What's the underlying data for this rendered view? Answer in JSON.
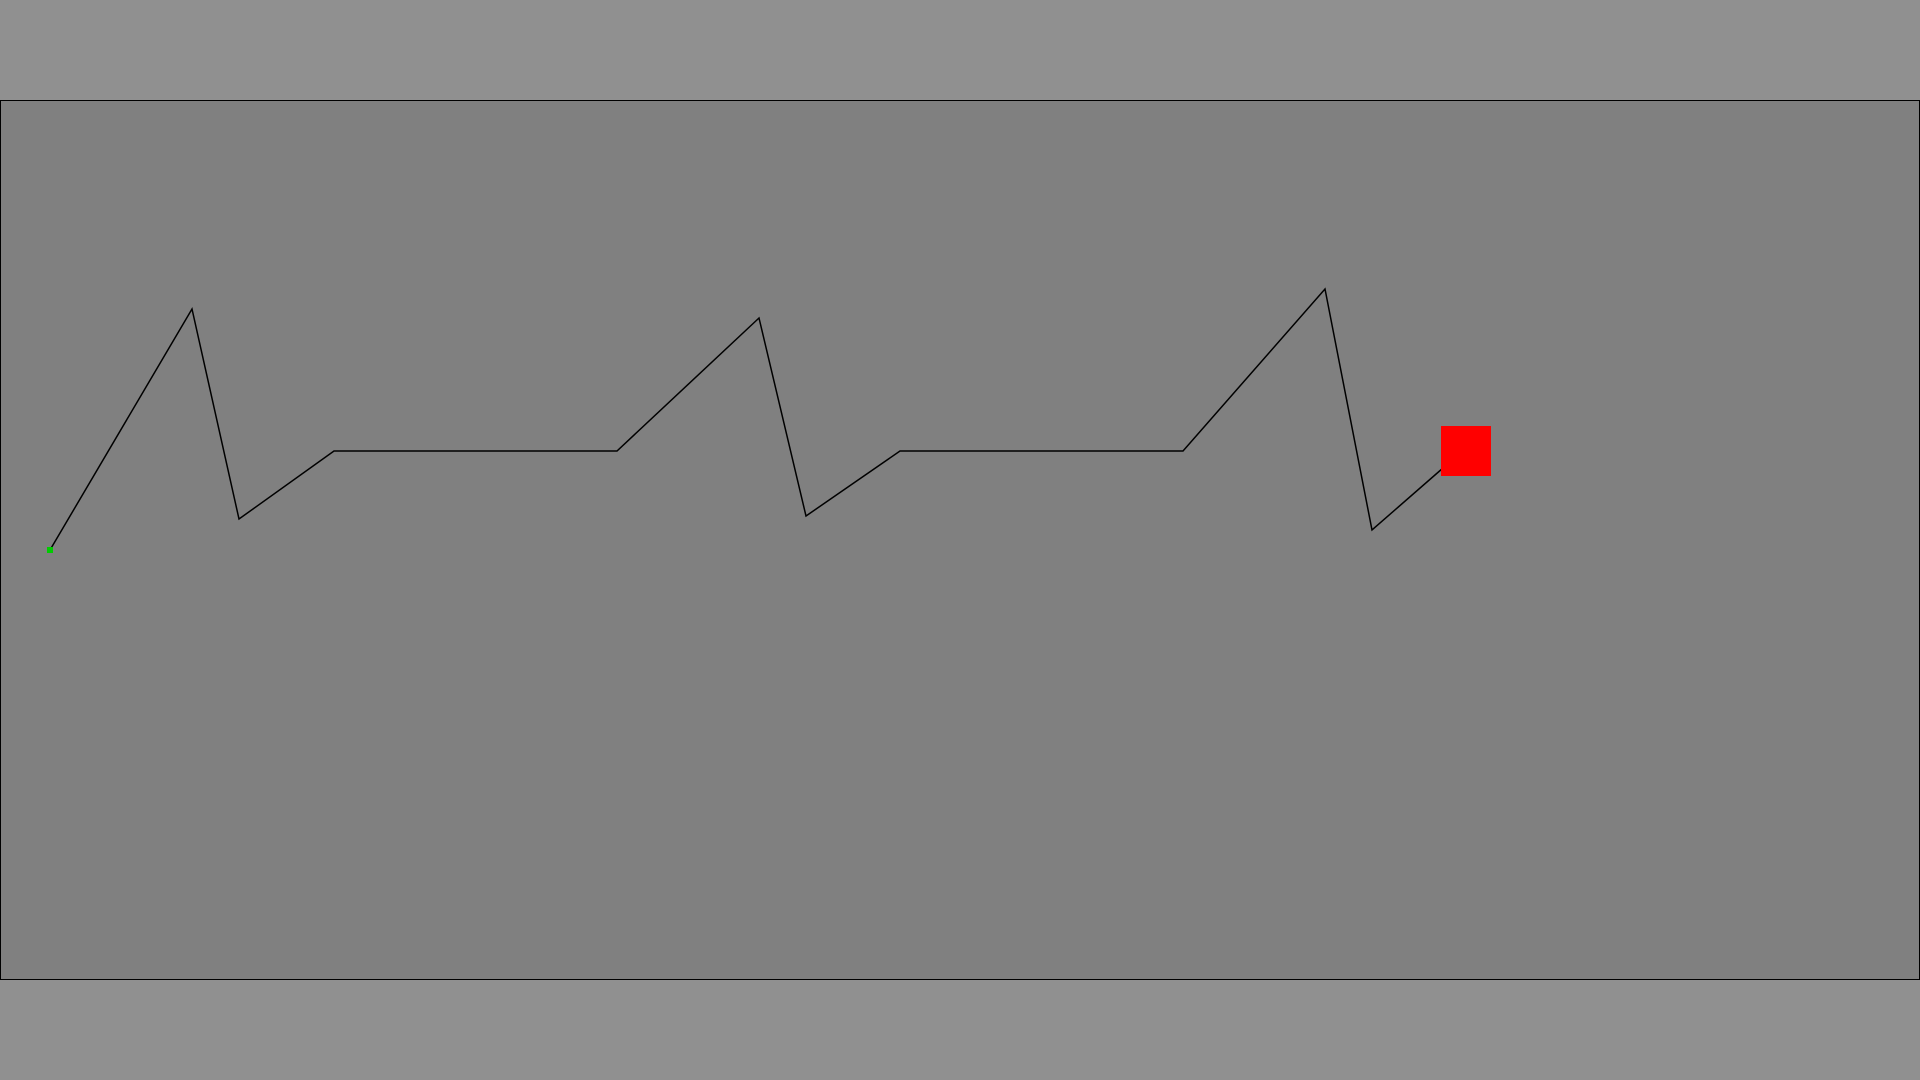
{
  "game": {
    "background_color": "#909090",
    "canvas_color": "#808080",
    "canvas_border_color": "#000000",
    "path_color": "#000000",
    "start_marker": {
      "icon": "green-dot-start-marker",
      "color": "#00cc00"
    },
    "player": {
      "icon": "red-square-player",
      "color": "#ff0000"
    }
  }
}
